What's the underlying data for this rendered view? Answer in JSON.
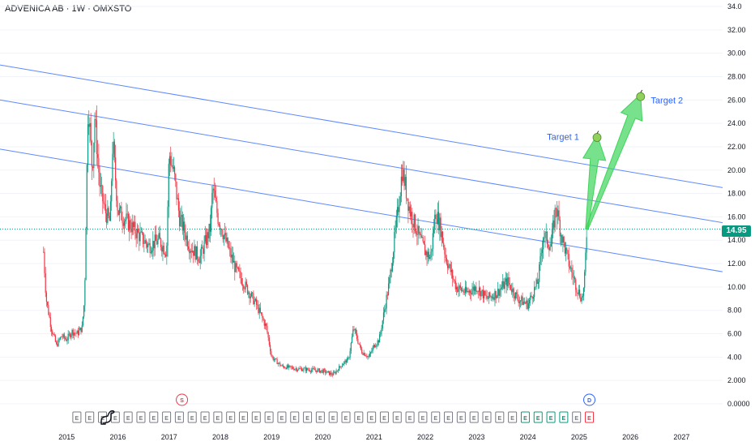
{
  "header": {
    "title": "ADVENICA AB · 1W · OMXSTO"
  },
  "price_label": "14.95",
  "colors": {
    "up": "#089981",
    "down": "#f23645",
    "channel": "#2962ff",
    "arrow": "#3ed45a",
    "axis_text": "#131722"
  },
  "markers": {
    "split_label": "S",
    "dividend_label": "D",
    "earnings_label": "E"
  },
  "chart_data": {
    "type": "candlestick",
    "title": "ADVENICA AB · 1W · OMXSTO",
    "xlabel": "",
    "ylabel": "",
    "xlim": [
      2013.7,
      2027.8
    ],
    "ylim": [
      0,
      34
    ],
    "y_ticks": [
      0,
      2,
      4,
      6,
      8,
      10,
      12,
      14,
      16,
      18,
      20,
      22,
      24,
      26,
      28,
      30,
      32,
      34
    ],
    "y_tick_labels": [
      "0.0000",
      "2.000",
      "4.00",
      "6.00",
      "8.00",
      "10.00",
      "12.00",
      "14.00",
      "16.00",
      "18.00",
      "20.00",
      "22.00",
      "24.00",
      "26.00",
      "28.00",
      "30.00",
      "32.00",
      "34.0"
    ],
    "x_ticks": [
      "2015",
      "2016",
      "2017",
      "2018",
      "2019",
      "2020",
      "2021",
      "2022",
      "2023",
      "2024",
      "2025",
      "2026",
      "2027"
    ],
    "last_price": 14.95,
    "price_path": [
      [
        2014.55,
        13.0
      ],
      [
        2014.6,
        9.0
      ],
      [
        2014.7,
        6.5
      ],
      [
        2014.8,
        5.0
      ],
      [
        2014.9,
        5.8
      ],
      [
        2015.0,
        5.5
      ],
      [
        2015.1,
        6.2
      ],
      [
        2015.2,
        6.0
      ],
      [
        2015.3,
        6.5
      ],
      [
        2015.35,
        9.0
      ],
      [
        2015.42,
        26.0
      ],
      [
        2015.5,
        20.0
      ],
      [
        2015.55,
        24.5
      ],
      [
        2015.65,
        18.5
      ],
      [
        2015.75,
        16.5
      ],
      [
        2015.85,
        15.5
      ],
      [
        2015.9,
        22.5
      ],
      [
        2016.0,
        16.5
      ],
      [
        2016.2,
        15.5
      ],
      [
        2016.4,
        14.5
      ],
      [
        2016.6,
        13.5
      ],
      [
        2016.8,
        14.0
      ],
      [
        2016.95,
        13.0
      ],
      [
        2017.0,
        21.5
      ],
      [
        2017.1,
        19.5
      ],
      [
        2017.2,
        16.0
      ],
      [
        2017.4,
        13.5
      ],
      [
        2017.6,
        12.5
      ],
      [
        2017.8,
        15.0
      ],
      [
        2017.85,
        18.5
      ],
      [
        2017.95,
        16.0
      ],
      [
        2018.1,
        14.0
      ],
      [
        2018.3,
        11.5
      ],
      [
        2018.5,
        10.0
      ],
      [
        2018.7,
        8.5
      ],
      [
        2018.9,
        6.5
      ],
      [
        2019.0,
        4.0
      ],
      [
        2019.2,
        3.2
      ],
      [
        2019.5,
        3.0
      ],
      [
        2019.8,
        2.9
      ],
      [
        2020.0,
        2.8
      ],
      [
        2020.2,
        2.5
      ],
      [
        2020.4,
        3.5
      ],
      [
        2020.5,
        3.8
      ],
      [
        2020.6,
        6.5
      ],
      [
        2020.75,
        4.5
      ],
      [
        2020.9,
        4.0
      ],
      [
        2021.0,
        5.0
      ],
      [
        2021.1,
        5.5
      ],
      [
        2021.3,
        10.5
      ],
      [
        2021.45,
        16.0
      ],
      [
        2021.55,
        20.0
      ],
      [
        2021.7,
        16.5
      ],
      [
        2021.9,
        14.0
      ],
      [
        2022.0,
        13.0
      ],
      [
        2022.1,
        12.5
      ],
      [
        2022.2,
        16.5
      ],
      [
        2022.3,
        15.0
      ],
      [
        2022.4,
        12.5
      ],
      [
        2022.6,
        10.0
      ],
      [
        2022.8,
        9.5
      ],
      [
        2023.0,
        10.0
      ],
      [
        2023.2,
        9.0
      ],
      [
        2023.4,
        9.5
      ],
      [
        2023.6,
        10.5
      ],
      [
        2023.8,
        9.0
      ],
      [
        2024.0,
        8.5
      ],
      [
        2024.2,
        10.5
      ],
      [
        2024.3,
        14.5
      ],
      [
        2024.45,
        13.5
      ],
      [
        2024.55,
        17.0
      ],
      [
        2024.65,
        14.5
      ],
      [
        2024.8,
        12.0
      ],
      [
        2024.95,
        10.0
      ],
      [
        2025.05,
        9.0
      ],
      [
        2025.1,
        10.0
      ],
      [
        2025.15,
        14.95
      ]
    ],
    "channel_lines": [
      {
        "start": [
          2013.7,
          29.0
        ],
        "end": [
          2027.8,
          18.5
        ]
      },
      {
        "start": [
          2013.7,
          26.0
        ],
        "end": [
          2027.8,
          15.5
        ]
      },
      {
        "start": [
          2013.7,
          21.8
        ],
        "end": [
          2027.8,
          11.3
        ]
      }
    ],
    "annotations": [
      {
        "text": "Target 1",
        "x": 2025.0,
        "y": 22.6,
        "anchor": "end"
      },
      {
        "text": "Target 2",
        "x": 2026.4,
        "y": 25.7,
        "anchor": "start"
      }
    ],
    "targets": [
      {
        "name": "Target 1",
        "from": [
          2025.15,
          14.95
        ],
        "to": [
          2025.35,
          23.0
        ]
      },
      {
        "name": "Target 2",
        "from": [
          2025.15,
          14.95
        ],
        "to": [
          2026.2,
          26.5
        ]
      }
    ],
    "event_markers": {
      "earnings_x": [
        2015.2,
        2015.45,
        2015.7,
        2015.95,
        2016.2,
        2016.45,
        2016.7,
        2016.95,
        2017.2,
        2017.45,
        2017.7,
        2017.95,
        2018.2,
        2018.45,
        2018.7,
        2018.95,
        2019.2,
        2019.45,
        2019.7,
        2019.95,
        2020.2,
        2020.45,
        2020.7,
        2020.95,
        2021.2,
        2021.45,
        2021.7,
        2021.95,
        2022.2,
        2022.45,
        2022.7,
        2022.95,
        2023.2,
        2023.45,
        2023.7,
        2023.95,
        2024.2,
        2024.45,
        2024.7,
        2024.95,
        2025.2
      ],
      "earnings_green_x": [
        2023.95,
        2024.2,
        2024.45,
        2024.7
      ],
      "earnings_red_x": [
        2025.2
      ],
      "split_x": 2017.25,
      "dividend_x": 2025.2
    }
  }
}
